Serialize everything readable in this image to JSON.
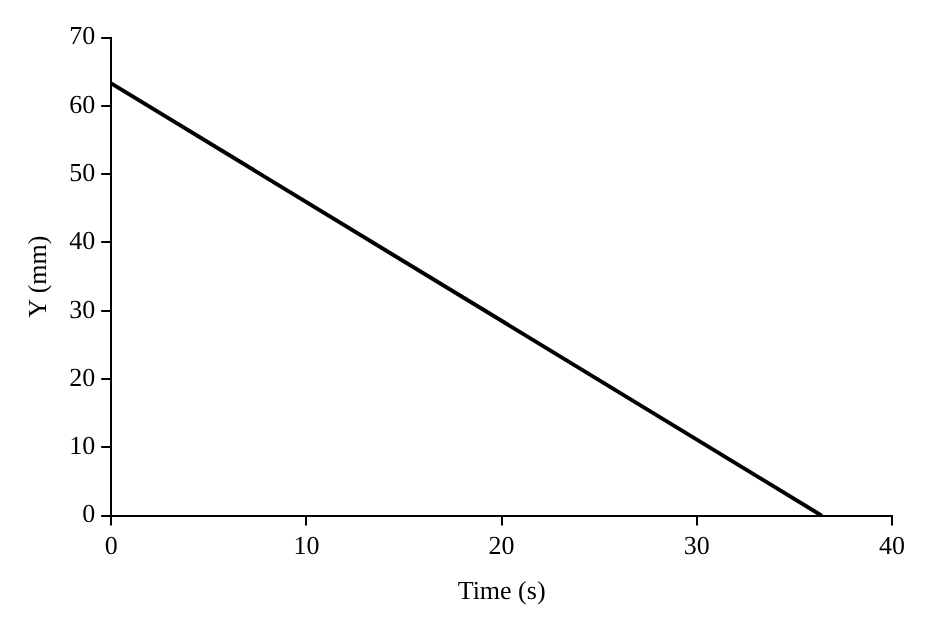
{
  "chart_data": {
    "type": "line",
    "xlabel": "Time (s)",
    "ylabel": "Y (mm)",
    "x": [
      0,
      36.4
    ],
    "series": [
      {
        "color": "#000000",
        "values": [
          63.3,
          0
        ]
      }
    ],
    "xlim": [
      0,
      40
    ],
    "xticks": [
      0,
      10,
      20,
      30,
      40
    ],
    "ylim": [
      0,
      70
    ],
    "yticks": [
      0,
      10,
      20,
      30,
      40,
      50,
      60,
      70
    ],
    "grid": false,
    "legend": false,
    "marker": "none",
    "line_style": "solid"
  }
}
